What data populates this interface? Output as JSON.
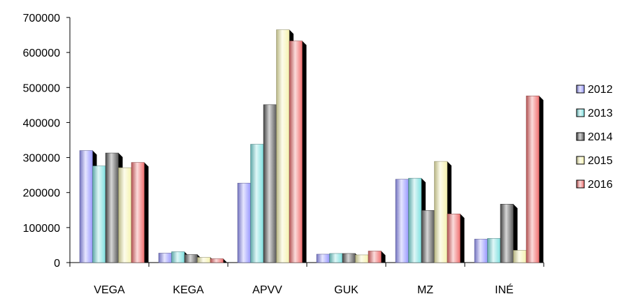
{
  "chart_data": {
    "type": "bar",
    "categories": [
      "VEGA",
      "KEGA",
      "APVV",
      "GUK",
      "MZ",
      "INÉ"
    ],
    "series": [
      {
        "name": "2012",
        "color": "#9999ff",
        "values": [
          320000,
          27000,
          227000,
          24000,
          238000,
          67000
        ]
      },
      {
        "name": "2013",
        "color": "#7fe0e0",
        "values": [
          276000,
          31000,
          338000,
          26000,
          241000,
          69000
        ]
      },
      {
        "name": "2014",
        "color": "#5a5a5a",
        "values": [
          313000,
          23000,
          451000,
          26000,
          149000,
          167000
        ]
      },
      {
        "name": "2015",
        "color": "#f5f2b0",
        "values": [
          271000,
          15000,
          665000,
          22000,
          289000,
          35000
        ]
      },
      {
        "name": "2016",
        "color": "#f07070",
        "values": [
          286000,
          11000,
          633000,
          33000,
          139000,
          476000
        ]
      }
    ],
    "ylim": [
      0,
      700000
    ],
    "yticks": [
      "0",
      "100000",
      "200000",
      "300000",
      "400000",
      "500000",
      "600000",
      "700000"
    ],
    "legend_position": "right",
    "grid": false,
    "title": "",
    "xlabel": "",
    "ylabel": ""
  }
}
